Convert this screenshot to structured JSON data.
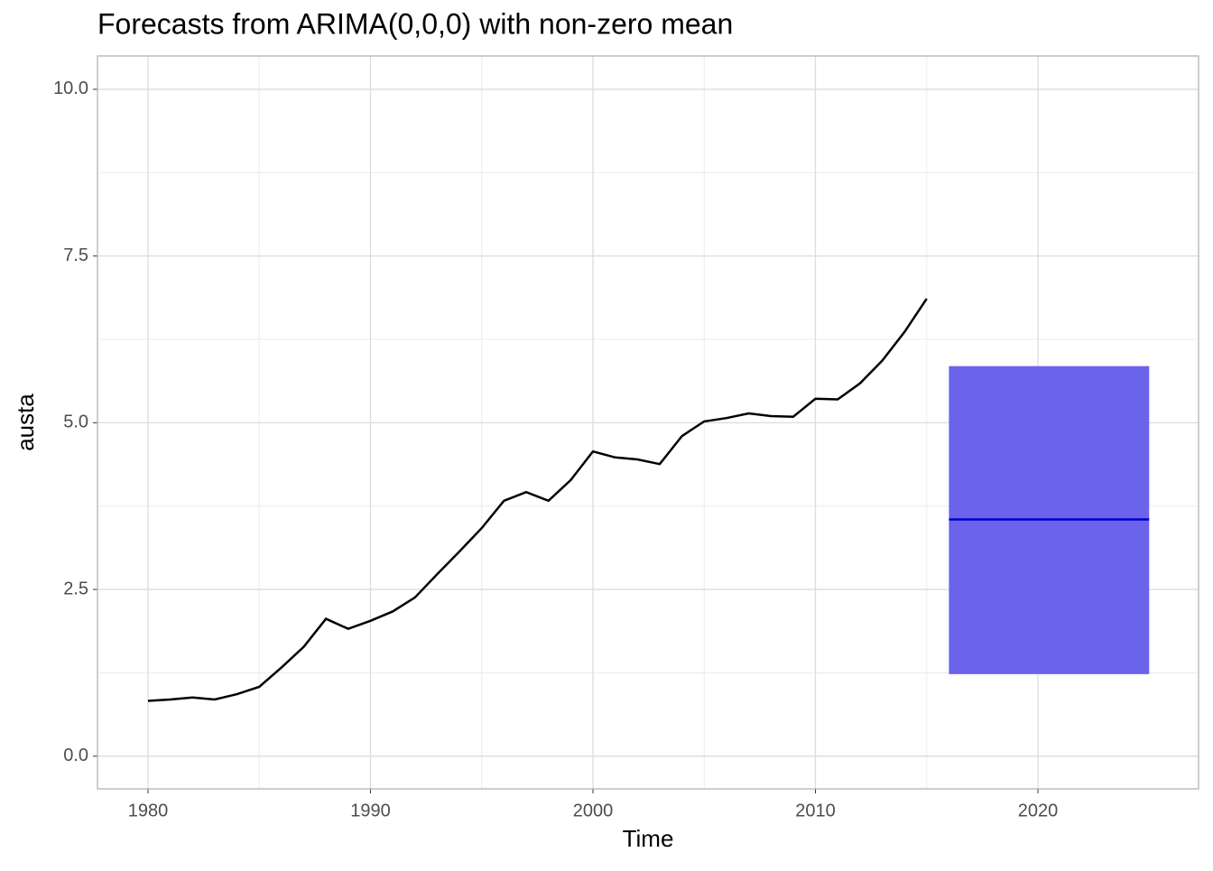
{
  "chart_data": {
    "type": "line",
    "title": "Forecasts from ARIMA(0,0,0) with non-zero mean",
    "x_label": "Time",
    "y_label": "austa",
    "x": [
      1980,
      1981,
      1982,
      1983,
      1984,
      1985,
      1986,
      1987,
      1988,
      1989,
      1990,
      1991,
      1992,
      1993,
      1994,
      1995,
      1996,
      1997,
      1998,
      1999,
      2000,
      2001,
      2002,
      2003,
      2004,
      2005,
      2006,
      2007,
      2008,
      2009,
      2010,
      2011,
      2012,
      2013,
      2014,
      2015
    ],
    "series": [
      {
        "name": "austa",
        "color": "#000000",
        "values": [
          0.83,
          0.85,
          0.88,
          0.85,
          0.93,
          1.04,
          1.33,
          1.64,
          2.06,
          1.91,
          2.03,
          2.17,
          2.38,
          2.73,
          3.07,
          3.42,
          3.83,
          3.96,
          3.83,
          4.14,
          4.57,
          4.48,
          4.45,
          4.38,
          4.8,
          5.02,
          5.07,
          5.14,
          5.1,
          5.09,
          5.36,
          5.35,
          5.59,
          5.93,
          6.36,
          6.86
        ]
      }
    ],
    "forecast": {
      "x": [
        2016,
        2017,
        2018,
        2019,
        2020,
        2021,
        2022,
        2023,
        2024,
        2025
      ],
      "mean": [
        3.55,
        3.55,
        3.55,
        3.55,
        3.55,
        3.55,
        3.55,
        3.55,
        3.55,
        3.55
      ],
      "lower": [
        1.23,
        1.23,
        1.23,
        1.23,
        1.23,
        1.23,
        1.23,
        1.23,
        1.23,
        1.23
      ],
      "upper": [
        5.85,
        5.85,
        5.85,
        5.85,
        5.85,
        5.85,
        5.85,
        5.85,
        5.85,
        5.85
      ],
      "color": "#0000cc",
      "band_color": "#6b63eb"
    },
    "xlim": [
      1977.73,
      2027.22
    ],
    "ylim": [
      -0.49,
      10.5
    ],
    "xticks": [
      1980,
      1990,
      2000,
      2010,
      2020
    ],
    "yticks": [
      {
        "value": 0,
        "label": "0.0"
      },
      2.5,
      {
        "value": 5,
        "label": "5.0"
      },
      7.5,
      {
        "value": 10,
        "label": "10.0"
      }
    ],
    "grid": true,
    "minor_grid": true
  }
}
